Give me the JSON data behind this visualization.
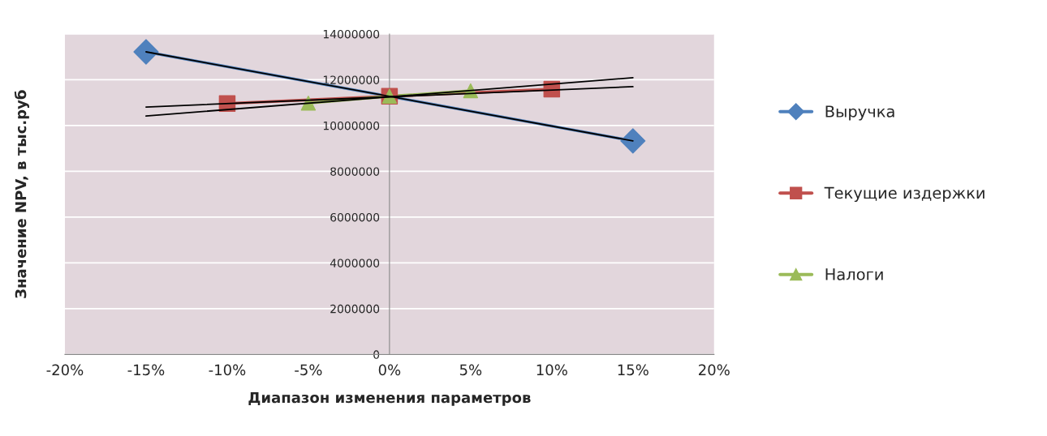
{
  "chart_data": {
    "type": "line",
    "xlabel": "Диапазон изменения параметров",
    "ylabel": "Значение NPV, в тыс.руб",
    "xlim": [
      -20,
      20
    ],
    "xticks": [
      {
        "value": -20,
        "label": "-20%"
      },
      {
        "value": -15,
        "label": "-15%"
      },
      {
        "value": -10,
        "label": "-10%"
      },
      {
        "value": -5,
        "label": "-5%"
      },
      {
        "value": 0,
        "label": "0%"
      },
      {
        "value": 5,
        "label": "5%"
      },
      {
        "value": 10,
        "label": "10%"
      },
      {
        "value": 15,
        "label": "15%"
      },
      {
        "value": 20,
        "label": "20%"
      }
    ],
    "ylim": [
      0,
      14000000
    ],
    "yticks": [
      0,
      2000000,
      4000000,
      6000000,
      8000000,
      10000000,
      12000000,
      14000000
    ],
    "grid": "y",
    "legend": "right",
    "series": [
      {
        "name": "Выручка",
        "color": "#4f81bd",
        "marker": "diamond",
        "x": [
          -15,
          15
        ],
        "values": [
          13220000,
          9330000
        ]
      },
      {
        "name": "Текущие издержки",
        "color": "#c0504d",
        "marker": "square",
        "x": [
          -10,
          0,
          10
        ],
        "values": [
          10960000,
          11280000,
          11590000
        ]
      },
      {
        "name": "Налоги",
        "color": "#9bbb59",
        "marker": "triangle",
        "x": [
          -5,
          0,
          5
        ],
        "values": [
          10980000,
          11280000,
          11520000
        ]
      },
      {
        "color": "#000000",
        "marker": "none",
        "x": [
          -15,
          15
        ],
        "values": [
          13220000,
          9330000
        ]
      },
      {
        "color": "#000000",
        "marker": "none",
        "x": [
          -15,
          15
        ],
        "values": [
          10810000,
          11700000
        ]
      },
      {
        "color": "#000000",
        "marker": "none",
        "x": [
          -15,
          15
        ],
        "values": [
          10420000,
          12090000
        ]
      }
    ]
  }
}
